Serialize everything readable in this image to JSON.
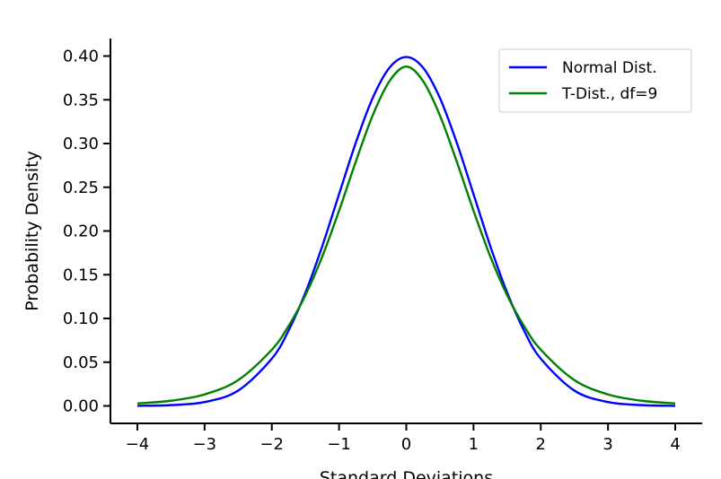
{
  "chart_data": {
    "type": "line",
    "title": "",
    "xlabel": "Standard Deviations",
    "ylabel": "Probability Density",
    "xlim": [
      -4.4,
      4.4
    ],
    "ylim": [
      -0.02,
      0.42
    ],
    "xticks": [
      -4,
      -3,
      -2,
      -1,
      0,
      1,
      2,
      3,
      4
    ],
    "xtick_labels": [
      "−4",
      "−3",
      "−2",
      "−1",
      "0",
      "1",
      "2",
      "3",
      "4"
    ],
    "yticks": [
      0.0,
      0.05,
      0.1,
      0.15,
      0.2,
      0.25,
      0.3,
      0.35,
      0.4
    ],
    "ytick_labels": [
      "0.00",
      "0.05",
      "0.10",
      "0.15",
      "0.20",
      "0.25",
      "0.30",
      "0.35",
      "0.40"
    ],
    "grid": false,
    "legend_position": "top-right",
    "x": [
      -4,
      -3.5,
      -3,
      -2.5,
      -2,
      -1.75,
      -1.5,
      -1.25,
      -1,
      -0.75,
      -0.5,
      -0.25,
      0,
      0.25,
      0.5,
      0.75,
      1,
      1.25,
      1.5,
      1.75,
      2,
      2.5,
      3,
      3.5,
      4
    ],
    "series": [
      {
        "name": "Normal Dist.",
        "color": "#0000ff",
        "values": [
          0.0001,
          0.0009,
          0.0044,
          0.0175,
          0.054,
          0.0863,
          0.1295,
          0.1826,
          0.242,
          0.3011,
          0.3521,
          0.3867,
          0.3989,
          0.3867,
          0.3521,
          0.3011,
          0.242,
          0.1826,
          0.1295,
          0.0863,
          0.054,
          0.0175,
          0.0044,
          0.0009,
          0.0001
        ]
      },
      {
        "name": "T-Dist., df=9",
        "color": "#008000",
        "values": [
          0.0028,
          0.0059,
          0.0131,
          0.0295,
          0.0643,
          0.0914,
          0.1265,
          0.1707,
          0.2231,
          0.2795,
          0.3321,
          0.3713,
          0.388,
          0.3713,
          0.3321,
          0.2795,
          0.2231,
          0.1707,
          0.1265,
          0.0914,
          0.0643,
          0.0295,
          0.0131,
          0.0059,
          0.0028
        ]
      }
    ]
  }
}
